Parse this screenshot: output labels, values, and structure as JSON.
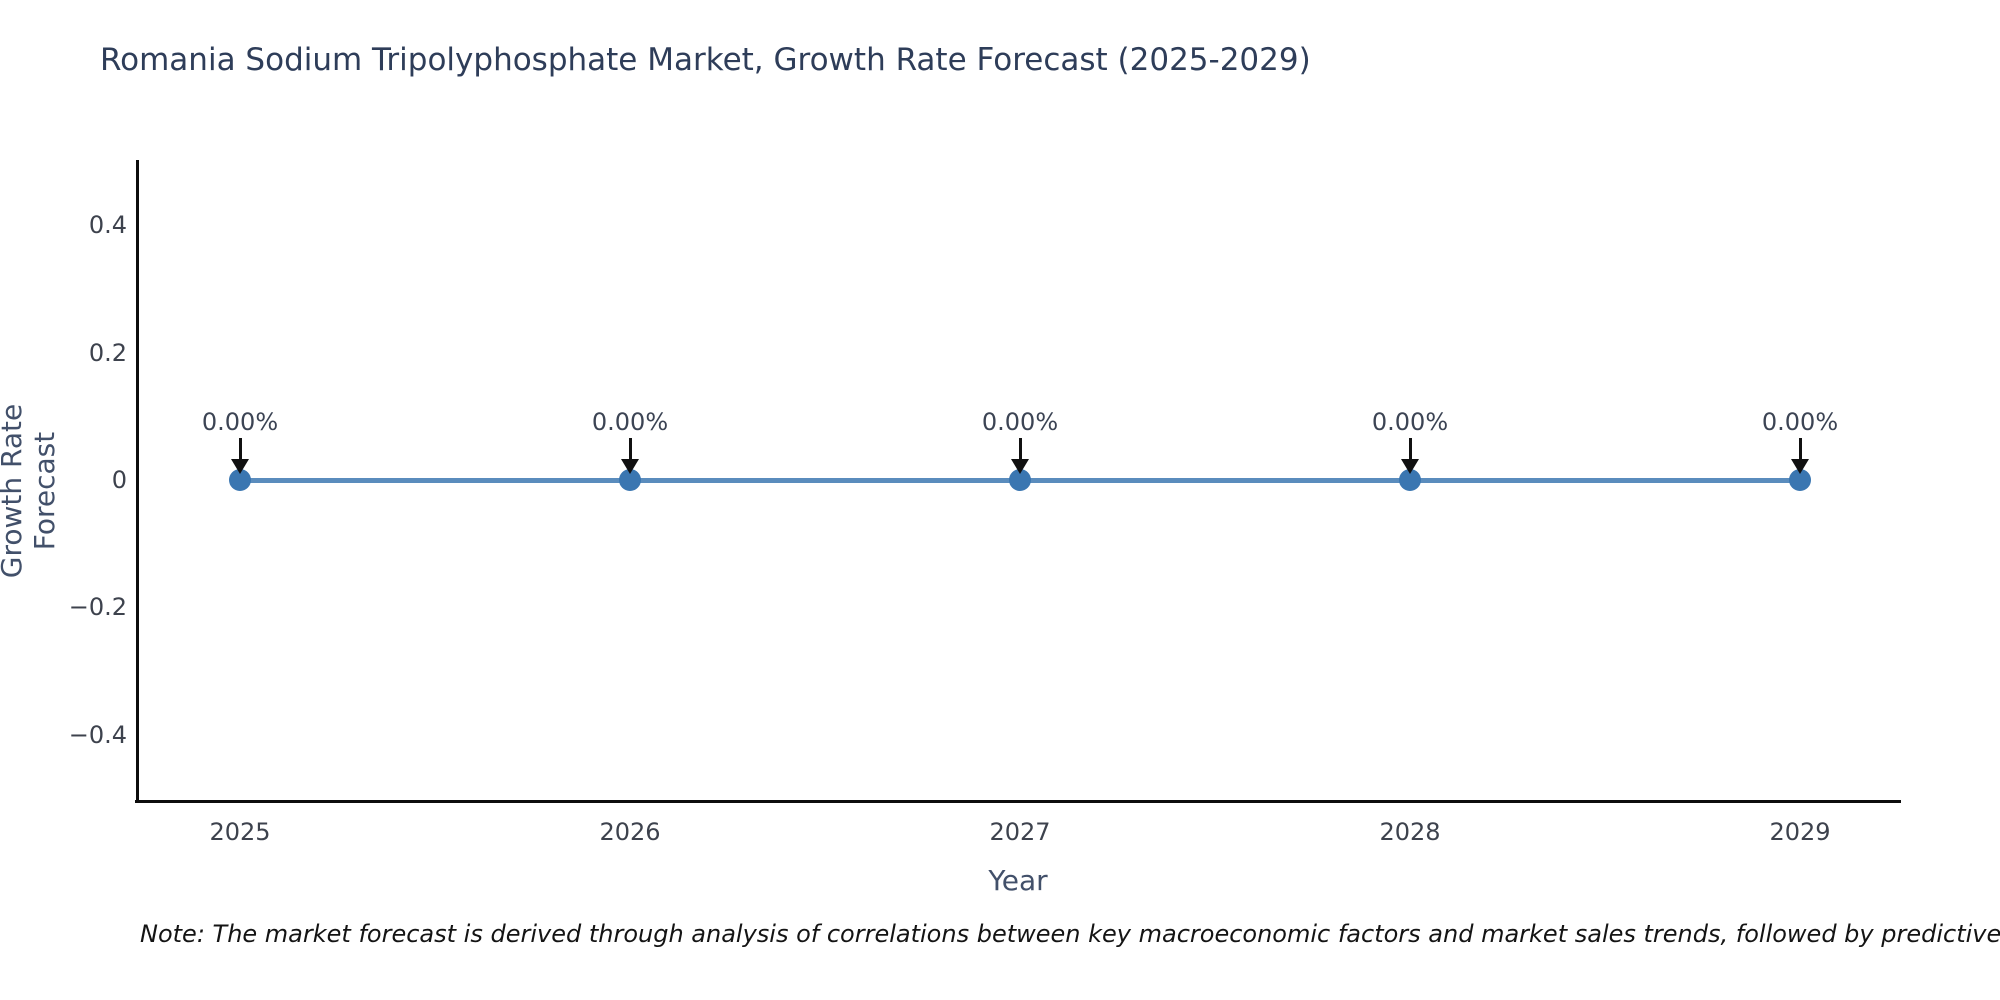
{
  "chart_data": {
    "type": "line",
    "title": "Romania Sodium Tripolyphosphate Market, Growth Rate Forecast (2025-2029)",
    "xlabel": "Year",
    "ylabel": "Growth Rate Forecast",
    "categories": [
      "2025",
      "2026",
      "2027",
      "2028",
      "2029"
    ],
    "series": [
      {
        "name": "Growth Rate Forecast",
        "values": [
          0,
          0,
          0,
          0,
          0
        ]
      }
    ],
    "point_labels": [
      "0.00%",
      "0.00%",
      "0.00%",
      "0.00%",
      "0.00%"
    ],
    "yticks": [
      0.4,
      0.2,
      0,
      -0.2,
      -0.4
    ],
    "ylim": [
      -0.502,
      0.502
    ],
    "grid": false,
    "legend_position": "none",
    "colors": {
      "line": "#5a8cbd",
      "marker": "#3a76b1",
      "annotation_arrow": "#111111",
      "title_text": "#2e3d59",
      "tick_text": "#3d424d",
      "axis_label_text": "#42506a",
      "spine": "#0d0d0d"
    }
  },
  "footnote": "Note: The market forecast is derived through analysis of correlations between key macroeconomic factors and market sales trends, followed by predictive modeling to project future sales"
}
